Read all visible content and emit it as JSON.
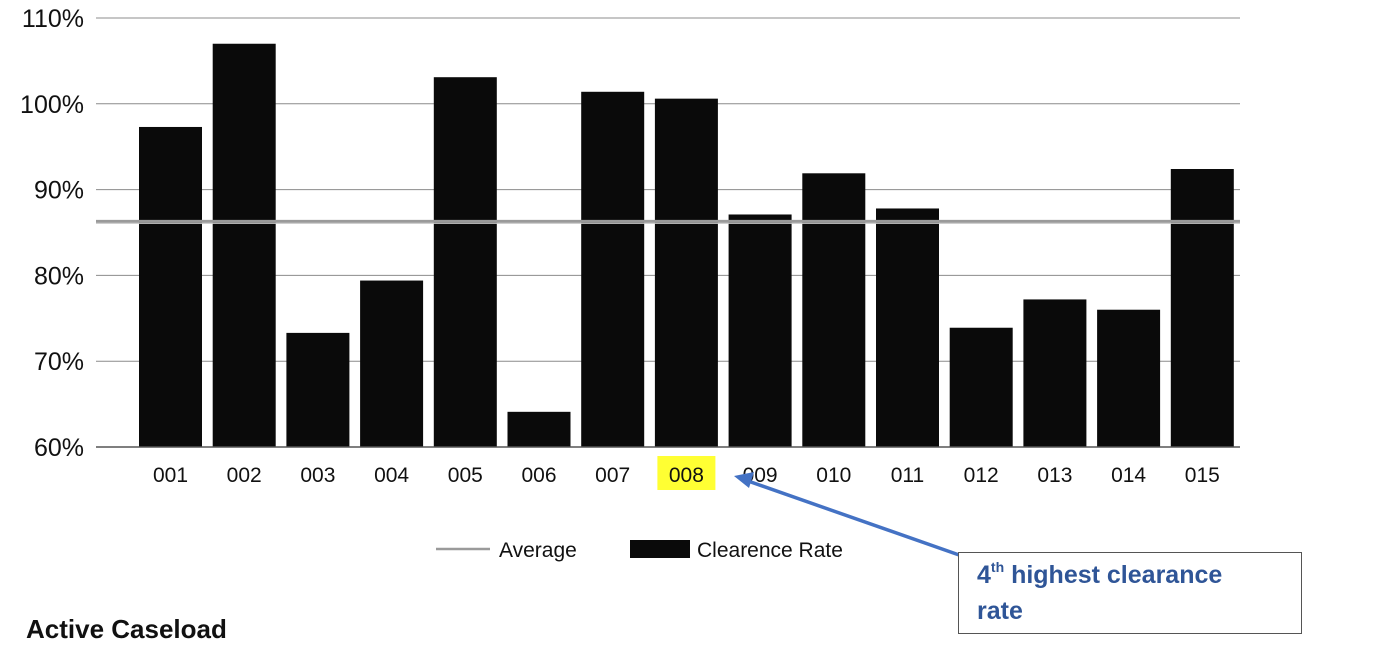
{
  "chart_data": {
    "type": "bar",
    "categories": [
      "001",
      "002",
      "003",
      "004",
      "005",
      "006",
      "007",
      "008",
      "009",
      "010",
      "011",
      "012",
      "013",
      "014",
      "015"
    ],
    "series": [
      {
        "name": "Clearence Rate",
        "values": [
          97.3,
          107.0,
          73.3,
          79.4,
          103.1,
          64.1,
          101.4,
          100.6,
          87.1,
          91.9,
          87.8,
          73.9,
          77.2,
          76.0,
          92.4
        ]
      },
      {
        "name": "Average",
        "values": [
          86.3,
          86.3,
          86.3,
          86.3,
          86.3,
          86.3,
          86.3,
          86.3,
          86.3,
          86.3,
          86.3,
          86.3,
          86.3,
          86.3,
          86.3
        ]
      }
    ],
    "yticks": [
      "110%",
      "100%",
      "90%",
      "80%",
      "70%",
      "60%"
    ],
    "ylim": [
      60,
      110
    ],
    "grid": true,
    "legend_position": "bottom",
    "legend": [
      "Average",
      "Clearence Rate"
    ],
    "highlighted_category": "008",
    "colors": {
      "bar": "#0a0a0a",
      "average_line": "#9a9a9a",
      "gridline": "#8c8c8c",
      "highlight": "#ffff33",
      "arrow": "#4472c4",
      "annotation_text": "#2f5597"
    }
  },
  "annotation": {
    "prefix": "4",
    "superscript": "th",
    "line1": " highest clearance",
    "line2": "rate"
  },
  "section_heading": "Active Caseload"
}
